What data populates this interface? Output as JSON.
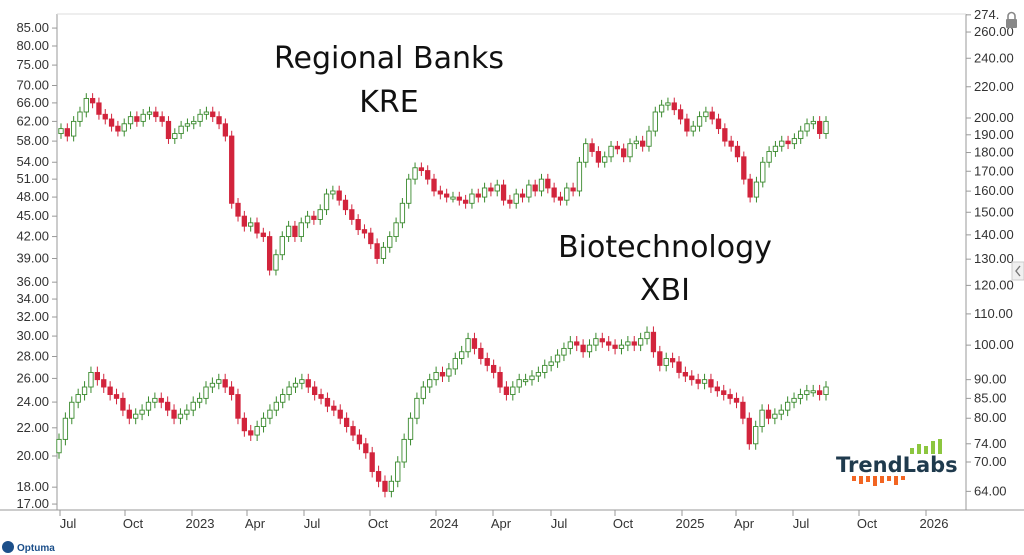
{
  "chart_data": {
    "type": "candlestick",
    "colors": {
      "up": "#3a8a2e",
      "down": "#d2243c",
      "axis": "#777777",
      "logo_dark": "#1f3a4d",
      "logo_green": "#8cc63f",
      "logo_orange": "#f26522"
    },
    "x_ticks": [
      "Jul",
      "Oct",
      "2023",
      "Apr",
      "Jul",
      "Oct",
      "2024",
      "Apr",
      "Jul",
      "Oct",
      "2025",
      "Apr",
      "Jul",
      "Oct",
      "2026"
    ],
    "left_axis_ticks": [
      "85.00",
      "80.00",
      "75.00",
      "70.00",
      "66.00",
      "62.00",
      "58.00",
      "54.00",
      "51.00",
      "48.00",
      "45.00",
      "42.00",
      "39.00",
      "36.00",
      "34.00",
      "32.00",
      "30.00",
      "28.00",
      "26.00",
      "24.00",
      "22.00",
      "20.00",
      "18.00",
      "17.00"
    ],
    "right_axis_ticks": [
      "274.",
      "260.00",
      "240.00",
      "220.00",
      "200.00",
      "190.00",
      "180.00",
      "170.00",
      "160.00",
      "150.00",
      "140.00",
      "130.00",
      "120.00",
      "110.00",
      "100.00",
      "90.00",
      "85.00",
      "80.00",
      "74.00",
      "70.00",
      "64.00"
    ],
    "series": [
      {
        "name": "KRE",
        "axis": "left",
        "weekly_close": [
          60.5,
          59.0,
          62.0,
          64.0,
          67.0,
          66.0,
          63.5,
          62.5,
          61.0,
          60.0,
          61.5,
          63.0,
          62.0,
          63.5,
          64.0,
          63.0,
          62.0,
          58.5,
          59.5,
          61.0,
          61.5,
          62.0,
          63.5,
          64.0,
          63.0,
          61.5,
          59.0,
          47.0,
          45.0,
          43.5,
          44.0,
          42.5,
          42.0,
          37.5,
          39.5,
          42.0,
          43.5,
          42.0,
          44.0,
          45.0,
          44.5,
          46.0,
          48.5,
          49.0,
          47.5,
          46.0,
          44.5,
          43.0,
          42.5,
          41.0,
          39.0,
          40.5,
          42.0,
          44.0,
          47.0,
          51.0,
          53.0,
          52.5,
          51.0,
          49.0,
          48.5,
          48.0,
          48.0,
          47.5,
          47.0,
          48.5,
          48.0,
          49.5,
          49.0,
          50.0,
          47.5,
          47.0,
          48.5,
          48.0,
          50.0,
          49.0,
          51.0,
          49.5,
          48.0,
          47.5,
          49.5,
          49.0,
          54.0,
          57.5,
          56.0,
          54.0,
          55.0,
          57.0,
          56.5,
          55.0,
          57.5,
          58.0,
          57.0,
          60.0,
          64.0,
          65.5,
          66.0,
          64.5,
          62.5,
          60.0,
          61.0,
          63.0,
          64.0,
          62.5,
          60.5,
          58.0,
          57.0,
          55.0,
          51.0,
          48.0,
          50.5,
          54.0,
          56.0,
          57.0,
          58.0,
          57.5,
          58.5,
          60.0,
          61.5,
          62.0,
          59.5,
          62.0
        ],
        "weekly_open": [
          59.5,
          60.5,
          59.0,
          62.0,
          64.0,
          67.0,
          66.0,
          63.5,
          62.5,
          61.0,
          60.0,
          61.5,
          63.0,
          62.0,
          63.5,
          64.0,
          63.0,
          62.0,
          58.5,
          59.5,
          61.0,
          61.5,
          62.0,
          63.5,
          64.0,
          63.0,
          61.5,
          59.0,
          47.0,
          45.0,
          43.5,
          44.0,
          42.5,
          42.0,
          37.5,
          39.5,
          42.0,
          43.5,
          42.0,
          44.0,
          45.0,
          44.5,
          46.0,
          48.5,
          49.0,
          47.5,
          46.0,
          44.5,
          43.0,
          42.5,
          41.0,
          39.0,
          40.5,
          42.0,
          44.0,
          47.0,
          51.0,
          53.0,
          52.5,
          51.0,
          49.0,
          48.5,
          48.0,
          48.0,
          47.5,
          47.0,
          48.5,
          48.0,
          49.5,
          49.0,
          50.0,
          47.5,
          47.0,
          48.5,
          48.0,
          50.0,
          49.0,
          51.0,
          49.5,
          48.0,
          47.5,
          49.5,
          49.0,
          54.0,
          57.5,
          56.0,
          54.0,
          55.0,
          57.0,
          56.5,
          55.0,
          57.5,
          58.0,
          57.0,
          60.0,
          64.0,
          65.5,
          66.0,
          64.5,
          62.5,
          60.0,
          61.0,
          63.0,
          64.0,
          62.5,
          60.5,
          58.0,
          57.0,
          55.0,
          51.0,
          48.0,
          50.5,
          54.0,
          56.0,
          57.0,
          58.0,
          57.5,
          58.5,
          60.0,
          61.5,
          62.0,
          59.5
        ]
      },
      {
        "name": "XBI",
        "axis": "right",
        "weekly_close": [
          75.0,
          80.0,
          84.0,
          86.0,
          88.0,
          92.0,
          90.0,
          88.0,
          86.0,
          85.0,
          82.0,
          80.0,
          81.0,
          82.0,
          84.0,
          85.0,
          84.0,
          82.0,
          80.0,
          81.0,
          82.0,
          84.0,
          85.0,
          88.0,
          89.0,
          90.0,
          88.0,
          86.0,
          80.0,
          77.0,
          76.0,
          78.0,
          80.0,
          82.0,
          84.0,
          86.0,
          88.0,
          89.0,
          90.0,
          88.0,
          86.0,
          85.0,
          83.0,
          82.0,
          80.0,
          78.0,
          76.0,
          74.0,
          72.0,
          68.0,
          66.0,
          64.0,
          66.0,
          70.0,
          75.0,
          80.0,
          85.0,
          88.0,
          90.0,
          92.0,
          91.0,
          93.0,
          96.0,
          98.0,
          102.0,
          99.0,
          96.0,
          94.0,
          92.0,
          88.0,
          86.0,
          88.0,
          90.0,
          90.0,
          91.0,
          92.0,
          94.0,
          95.0,
          97.0,
          99.0,
          101.0,
          100.0,
          98.0,
          100.0,
          102.0,
          101.0,
          100.0,
          99.0,
          100.0,
          101.0,
          100.0,
          102.0,
          104.0,
          98.0,
          94.0,
          96.0,
          95.0,
          92.0,
          91.0,
          90.0,
          89.0,
          90.0,
          88.0,
          87.0,
          86.0,
          85.0,
          84.0,
          80.0,
          74.0,
          78.0,
          82.0,
          80.0,
          81.0,
          82.0,
          84.0,
          85.0,
          86.0,
          87.0,
          87.0,
          86.0,
          88.0
        ],
        "weekly_open": [
          72.0,
          75.0,
          80.0,
          84.0,
          86.0,
          88.0,
          92.0,
          90.0,
          88.0,
          86.0,
          85.0,
          82.0,
          80.0,
          81.0,
          82.0,
          84.0,
          85.0,
          84.0,
          82.0,
          80.0,
          81.0,
          82.0,
          84.0,
          85.0,
          88.0,
          89.0,
          90.0,
          88.0,
          86.0,
          80.0,
          77.0,
          76.0,
          78.0,
          80.0,
          82.0,
          84.0,
          86.0,
          88.0,
          89.0,
          90.0,
          88.0,
          86.0,
          85.0,
          83.0,
          82.0,
          80.0,
          78.0,
          76.0,
          74.0,
          72.0,
          68.0,
          66.0,
          64.0,
          66.0,
          70.0,
          75.0,
          80.0,
          85.0,
          88.0,
          90.0,
          92.0,
          91.0,
          93.0,
          96.0,
          98.0,
          102.0,
          99.0,
          96.0,
          94.0,
          92.0,
          88.0,
          86.0,
          88.0,
          90.0,
          90.0,
          91.0,
          92.0,
          94.0,
          95.0,
          97.0,
          99.0,
          101.0,
          100.0,
          98.0,
          100.0,
          102.0,
          101.0,
          100.0,
          99.0,
          100.0,
          101.0,
          100.0,
          102.0,
          104.0,
          98.0,
          94.0,
          96.0,
          95.0,
          92.0,
          91.0,
          90.0,
          89.0,
          90.0,
          88.0,
          87.0,
          86.0,
          85.0,
          84.0,
          80.0,
          74.0,
          78.0,
          82.0,
          80.0,
          81.0,
          82.0,
          84.0,
          85.0,
          86.0,
          87.0,
          87.0,
          86.0
        ]
      }
    ],
    "annotations": [
      {
        "line1": "Regional Banks",
        "line2": "KRE"
      },
      {
        "line1": "Biotechnology",
        "line2": "XBI"
      }
    ],
    "logo": "TrendLabs",
    "watermark": "Optuma"
  }
}
